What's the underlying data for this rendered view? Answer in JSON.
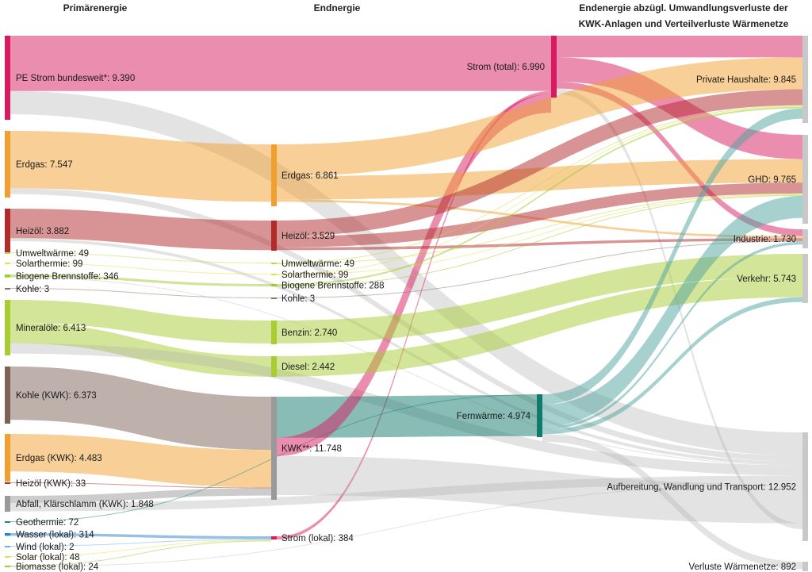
{
  "chart_data": {
    "type": "sankey",
    "headers": [
      "Primärenergie",
      "Endnergie",
      "Endenergie abzügl. Umwandlungsverluste der",
      "KWK-Anlagen und Verteilverluste Wärmenetze"
    ],
    "nodes": [
      {
        "id": "pe_strom",
        "label": "PE Strom bundesweit*: 9.390",
        "value": 9390,
        "column": 0,
        "color": "#d81b60"
      },
      {
        "id": "p_erdgas",
        "label": "Erdgas: 7.547",
        "value": 7547,
        "column": 0,
        "color": "#f0a030"
      },
      {
        "id": "p_heizoel",
        "label": "Heizöl: 3.882",
        "value": 3882,
        "column": 0,
        "color": "#b22a2a"
      },
      {
        "id": "p_umwelt",
        "label": "Umweltwärme: 49",
        "value": 49,
        "column": 0,
        "color": "#c7d93a"
      },
      {
        "id": "p_solar",
        "label": "Solarthermie: 99",
        "value": 99,
        "column": 0,
        "color": "#e4e24a"
      },
      {
        "id": "p_biogen",
        "label": "Biogene Brennstoffe: 346",
        "value": 346,
        "column": 0,
        "color": "#9ccc2b"
      },
      {
        "id": "p_kohle",
        "label": "Kohle: 3",
        "value": 3,
        "column": 0,
        "color": "#8d7466"
      },
      {
        "id": "p_mineral",
        "label": "Mineralöle: 6.413",
        "value": 6413,
        "column": 0,
        "color": "#a8cc32"
      },
      {
        "id": "p_kohle_kwk",
        "label": "Kohle (KWK): 6.373",
        "value": 6373,
        "column": 0,
        "color": "#7d6255"
      },
      {
        "id": "p_erdgas_kwk",
        "label": "Erdgas (KWK): 4.483",
        "value": 4483,
        "column": 0,
        "color": "#f0a030"
      },
      {
        "id": "p_heizoel_kwk",
        "label": "Heizöl (KWK): 33",
        "value": 33,
        "column": 0,
        "color": "#b22a2a"
      },
      {
        "id": "p_abfall",
        "label": "Abfall, Klärschlamm (KWK): 1.848",
        "value": 1848,
        "column": 0,
        "color": "#9a9a9a"
      },
      {
        "id": "p_geo",
        "label": "Geothermie: 72",
        "value": 72,
        "column": 0,
        "color": "#1b8a7a"
      },
      {
        "id": "p_wasser",
        "label": "Wasser (lokal): 314",
        "value": 314,
        "column": 0,
        "color": "#2f7ec8"
      },
      {
        "id": "p_wind",
        "label": "Wind (lokal): 2",
        "value": 2,
        "column": 0,
        "color": "#70b0e0"
      },
      {
        "id": "p_solar_lokal",
        "label": "Solar (lokal): 48",
        "value": 48,
        "column": 0,
        "color": "#e4e24a"
      },
      {
        "id": "p_biomasse",
        "label": "Biomasse (lokal): 24",
        "value": 24,
        "column": 0,
        "color": "#9ccc2b"
      },
      {
        "id": "e_erdgas",
        "label": "Erdgas: 6.861",
        "value": 6861,
        "column": 1,
        "color": "#f0a030"
      },
      {
        "id": "e_heizoel",
        "label": "Heizöl: 3.529",
        "value": 3529,
        "column": 1,
        "color": "#b22a2a"
      },
      {
        "id": "e_umwelt",
        "label": "Umweltwärme: 49",
        "value": 49,
        "column": 1,
        "color": "#c7d93a"
      },
      {
        "id": "e_solar",
        "label": "Solarthermie: 99",
        "value": 99,
        "column": 1,
        "color": "#e4e24a"
      },
      {
        "id": "e_biogen",
        "label": "Biogene Brennstoffe: 288",
        "value": 288,
        "column": 1,
        "color": "#9ccc2b"
      },
      {
        "id": "e_kohle",
        "label": "Kohle: 3",
        "value": 3,
        "column": 1,
        "color": "#8d7466"
      },
      {
        "id": "e_benzin",
        "label": "Benzin: 2.740",
        "value": 2740,
        "column": 1,
        "color": "#a8cc32"
      },
      {
        "id": "e_diesel",
        "label": "Diesel: 2.442",
        "value": 2442,
        "column": 1,
        "color": "#a8cc32"
      },
      {
        "id": "e_kwk",
        "label": "KWK**: 11.748",
        "value": 11748,
        "column": 1,
        "color": "#9a9a9a"
      },
      {
        "id": "e_strom_lokal",
        "label": "Strom (lokal): 384",
        "value": 384,
        "column": 1,
        "color": "#d81b60"
      },
      {
        "id": "e_strom_total",
        "label": "Strom (total): 6.990",
        "value": 6990,
        "column": 2,
        "color": "#d81b60"
      },
      {
        "id": "e_fernwaerme",
        "label": "Fernwärme: 4.974",
        "value": 4974,
        "column": 2,
        "color": "#127a6a"
      },
      {
        "id": "f_haushalte",
        "label": "Private Haushalte: 9.845",
        "value": 9845,
        "column": 3,
        "color": "#c8c8c8"
      },
      {
        "id": "f_ghd",
        "label": "GHD: 9.765",
        "value": 9765,
        "column": 3,
        "color": "#c8c8c8"
      },
      {
        "id": "f_industrie",
        "label": "Industrie: 1.730",
        "value": 1730,
        "column": 3,
        "color": "#c8c8c8"
      },
      {
        "id": "f_verkehr",
        "label": "Verkehr: 5.743",
        "value": 5743,
        "column": 3,
        "color": "#c8c8c8"
      },
      {
        "id": "f_aufbereitung",
        "label": "Aufbereitung, Wandlung und Transport: 12.952",
        "value": 12952,
        "column": 3,
        "color": "#c8c8c8"
      },
      {
        "id": "f_verluste",
        "label": "Verluste Wärmenetze: 892",
        "value": 892,
        "column": 3,
        "color": "#c8c8c8"
      }
    ],
    "links": [
      {
        "source": "pe_strom",
        "target": "e_strom_total",
        "value": 6606,
        "color": "#d81b60"
      },
      {
        "source": "pe_strom",
        "target": "f_aufbereitung",
        "value": 2784,
        "color": "#b0b0b0"
      },
      {
        "source": "p_erdgas",
        "target": "e_erdgas",
        "value": 6861,
        "color": "#f0a030"
      },
      {
        "source": "p_erdgas",
        "target": "f_aufbereitung",
        "value": 686,
        "color": "#b0b0b0"
      },
      {
        "source": "p_heizoel",
        "target": "e_heizoel",
        "value": 3529,
        "color": "#b22a2a"
      },
      {
        "source": "p_heizoel",
        "target": "f_aufbereitung",
        "value": 353,
        "color": "#b0b0b0"
      },
      {
        "source": "p_umwelt",
        "target": "e_umwelt",
        "value": 49,
        "color": "#c7d93a"
      },
      {
        "source": "p_solar",
        "target": "e_solar",
        "value": 99,
        "color": "#e4e24a"
      },
      {
        "source": "p_biogen",
        "target": "e_biogen",
        "value": 288,
        "color": "#9ccc2b"
      },
      {
        "source": "p_biogen",
        "target": "f_aufbereitung",
        "value": 58,
        "color": "#b0b0b0"
      },
      {
        "source": "p_kohle",
        "target": "e_kohle",
        "value": 3,
        "color": "#8d7466"
      },
      {
        "source": "p_mineral",
        "target": "e_benzin",
        "value": 2740,
        "color": "#a8cc32"
      },
      {
        "source": "p_mineral",
        "target": "e_diesel",
        "value": 2442,
        "color": "#a8cc32"
      },
      {
        "source": "p_mineral",
        "target": "f_aufbereitung",
        "value": 1231,
        "color": "#b0b0b0"
      },
      {
        "source": "p_kohle_kwk",
        "target": "e_kwk",
        "value": 6373,
        "color": "#7d6255"
      },
      {
        "source": "p_erdgas_kwk",
        "target": "e_kwk",
        "value": 4483,
        "color": "#f0a030"
      },
      {
        "source": "p_heizoel_kwk",
        "target": "e_kwk",
        "value": 33,
        "color": "#b22a2a"
      },
      {
        "source": "p_abfall",
        "target": "e_kwk",
        "value": 859,
        "color": "#9a9a9a"
      },
      {
        "source": "p_abfall",
        "target": "f_aufbereitung",
        "value": 989,
        "color": "#b0b0b0"
      },
      {
        "source": "p_geo",
        "target": "e_fernwaerme",
        "value": 72,
        "color": "#1b8a7a"
      },
      {
        "source": "p_wasser",
        "target": "e_strom_lokal",
        "value": 314,
        "color": "#2f7ec8"
      },
      {
        "source": "p_wind",
        "target": "e_strom_lokal",
        "value": 2,
        "color": "#70b0e0"
      },
      {
        "source": "p_solar_lokal",
        "target": "e_strom_lokal",
        "value": 48,
        "color": "#e4e24a"
      },
      {
        "source": "p_biomasse",
        "target": "e_strom_lokal",
        "value": 20,
        "color": "#9ccc2b"
      },
      {
        "source": "p_biomasse",
        "target": "f_aufbereitung",
        "value": 4,
        "color": "#b0b0b0"
      },
      {
        "source": "e_strom_lokal",
        "target": "e_strom_total",
        "value": 384,
        "color": "#d81b60"
      },
      {
        "source": "e_kwk",
        "target": "e_fernwaerme",
        "value": 4902,
        "color": "#127a6a"
      },
      {
        "source": "e_kwk",
        "target": "e_strom_total",
        "value": 2200,
        "color": "#d81b60"
      },
      {
        "source": "e_kwk",
        "target": "f_aufbereitung",
        "value": 4646,
        "color": "#b0b0b0"
      },
      {
        "source": "e_strom_total",
        "target": "f_haushalte",
        "value": 2600,
        "color": "#d81b60"
      },
      {
        "source": "e_strom_total",
        "target": "f_ghd",
        "value": 2900,
        "color": "#d81b60"
      },
      {
        "source": "e_strom_total",
        "target": "f_industrie",
        "value": 800,
        "color": "#d81b60"
      },
      {
        "source": "e_strom_total",
        "target": "f_verkehr",
        "value": 0,
        "color": "#d81b60"
      },
      {
        "source": "e_strom_total",
        "target": "f_aufbereitung",
        "value": 690,
        "color": "#b0b0b0"
      },
      {
        "source": "e_erdgas",
        "target": "f_haushalte",
        "value": 3800,
        "color": "#f0a030"
      },
      {
        "source": "e_erdgas",
        "target": "f_ghd",
        "value": 2800,
        "color": "#f0a030"
      },
      {
        "source": "e_erdgas",
        "target": "f_industrie",
        "value": 261,
        "color": "#f0a030"
      },
      {
        "source": "e_heizoel",
        "target": "f_haushalte",
        "value": 1900,
        "color": "#b22a2a"
      },
      {
        "source": "e_heizoel",
        "target": "f_ghd",
        "value": 1300,
        "color": "#b22a2a"
      },
      {
        "source": "e_heizoel",
        "target": "f_industrie",
        "value": 329,
        "color": "#b22a2a"
      },
      {
        "source": "e_umwelt",
        "target": "f_haushalte",
        "value": 40,
        "color": "#c7d93a"
      },
      {
        "source": "e_umwelt",
        "target": "f_ghd",
        "value": 9,
        "color": "#c7d93a"
      },
      {
        "source": "e_solar",
        "target": "f_haushalte",
        "value": 80,
        "color": "#e4e24a"
      },
      {
        "source": "e_solar",
        "target": "f_ghd",
        "value": 19,
        "color": "#e4e24a"
      },
      {
        "source": "e_biogen",
        "target": "f_haushalte",
        "value": 200,
        "color": "#9ccc2b"
      },
      {
        "source": "e_biogen",
        "target": "f_ghd",
        "value": 88,
        "color": "#9ccc2b"
      },
      {
        "source": "e_kohle",
        "target": "f_industrie",
        "value": 3,
        "color": "#8d7466"
      },
      {
        "source": "e_benzin",
        "target": "f_verkehr",
        "value": 2740,
        "color": "#a8cc32"
      },
      {
        "source": "e_diesel",
        "target": "f_verkehr",
        "value": 2442,
        "color": "#a8cc32"
      },
      {
        "source": "e_fernwaerme",
        "target": "f_haushalte",
        "value": 1225,
        "color": "#4fa3a0"
      },
      {
        "source": "e_fernwaerme",
        "target": "f_ghd",
        "value": 2649,
        "color": "#4fa3a0"
      },
      {
        "source": "e_fernwaerme",
        "target": "f_industrie",
        "value": 337,
        "color": "#4fa3a0"
      },
      {
        "source": "e_fernwaerme",
        "target": "f_verkehr",
        "value": 561,
        "color": "#4fa3a0"
      },
      {
        "source": "e_fernwaerme",
        "target": "f_verluste",
        "value": 892,
        "color": "#b0b0b0"
      }
    ]
  }
}
